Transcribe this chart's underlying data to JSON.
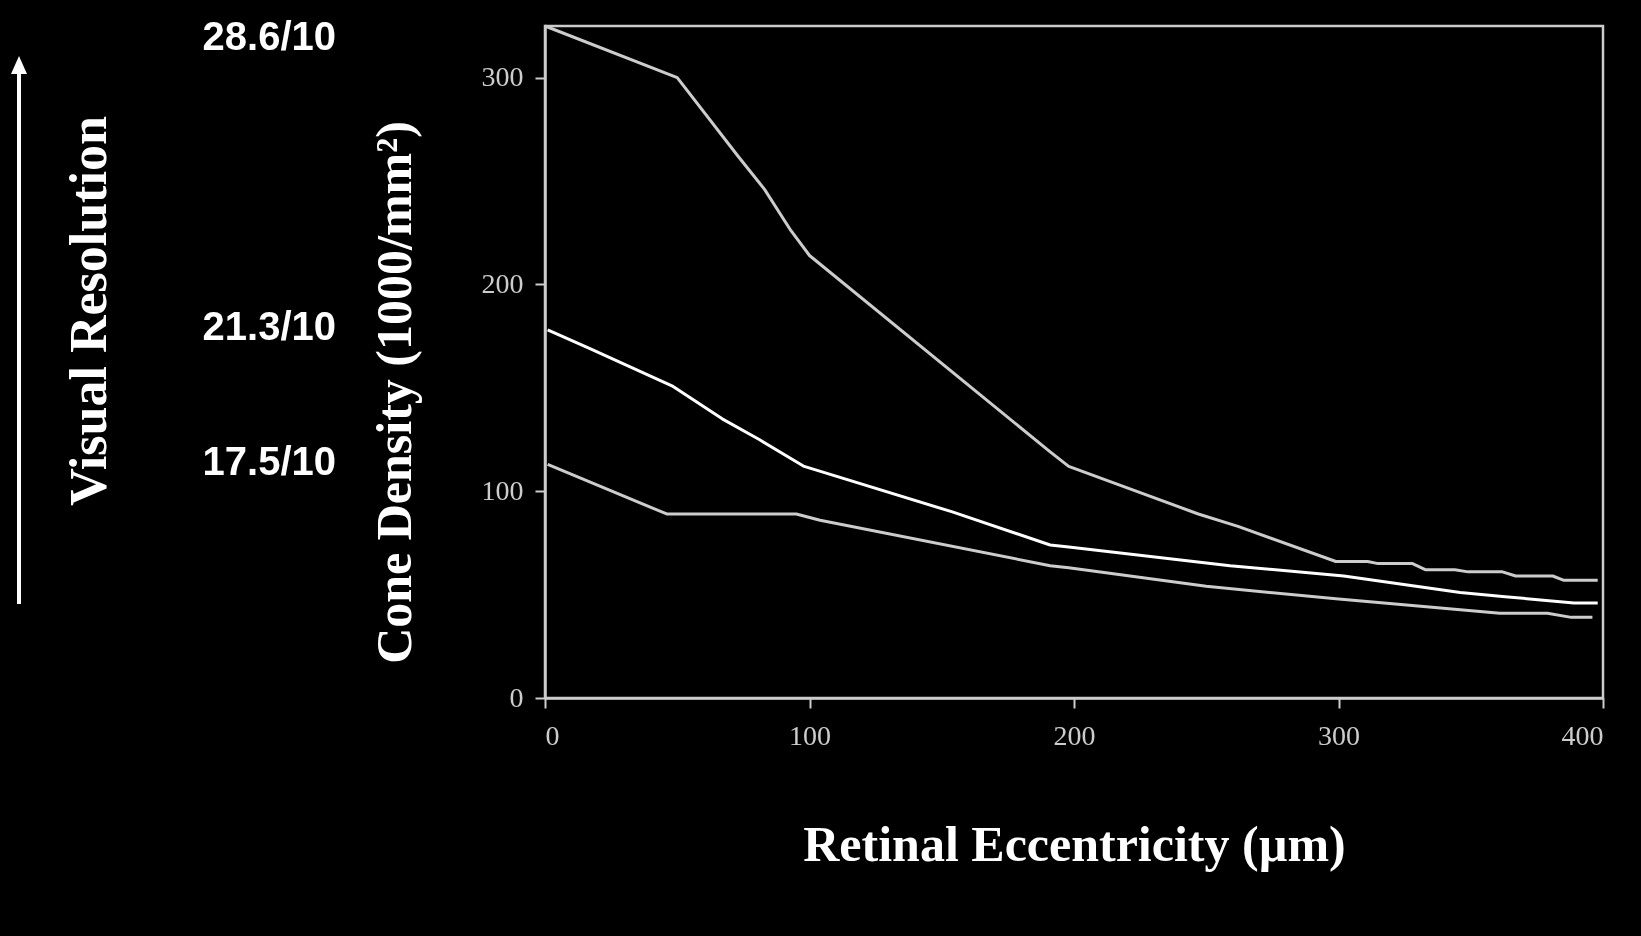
{
  "chart_data": {
    "type": "line",
    "xlabel": "Retinal Eccentricity (µm)",
    "ylabel": "Cone Density (1000/mm²)",
    "xlim": [
      0,
      400
    ],
    "xticks": [
      0,
      100,
      200,
      300,
      400
    ],
    "ylim": [
      0,
      325
    ],
    "yticks": [
      0,
      100,
      200,
      300
    ],
    "grid": false,
    "series": [
      {
        "color": "#cccccc",
        "x": [
          0,
          50,
          73,
          83,
          93,
          100,
          191,
          198,
          247,
          262,
          299,
          311,
          315,
          328,
          333,
          344,
          349,
          362,
          367,
          381,
          385,
          398
        ],
        "values": [
          325,
          300,
          262,
          246,
          226,
          214,
          119,
          112,
          89,
          83,
          66,
          66,
          65,
          65,
          62,
          62,
          61,
          61,
          59,
          59,
          57,
          57
        ]
      },
      {
        "color": "#ffffff",
        "x": [
          1,
          17,
          48,
          67,
          81,
          98,
          154,
          191,
          198,
          259,
          302,
          346,
          363,
          389,
          398
        ],
        "values": [
          178,
          169,
          151,
          135,
          125,
          112,
          90,
          74,
          73,
          64,
          59,
          51,
          49,
          46,
          46
        ]
      },
      {
        "color": "#cccccc",
        "x": [
          1,
          46,
          95,
          104,
          191,
          198,
          250,
          299,
          361,
          379,
          388,
          396
        ],
        "values": [
          113,
          89,
          89,
          86,
          64,
          63,
          54,
          48,
          41,
          41,
          39,
          39
        ]
      }
    ],
    "annotations": [
      "Visual Resolution",
      "28.6/10",
      "21.3/10",
      "17.5/10"
    ]
  }
}
